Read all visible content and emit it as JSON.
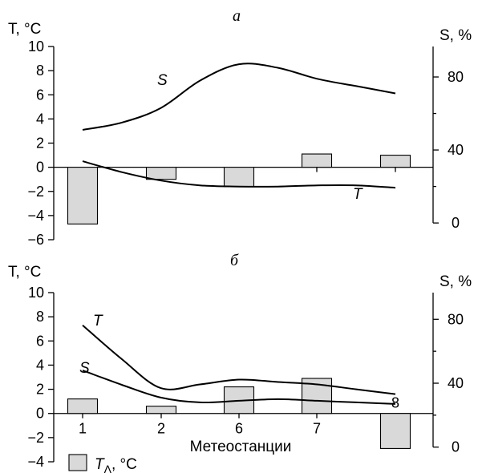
{
  "legend": {
    "symbol": "T",
    "subscript": "Λ",
    "unit": ", °C"
  },
  "chart_data": [
    {
      "type": "bar",
      "title": "а",
      "ylabel_left": "T, °C",
      "ylabel_right": "S, %",
      "xlabel": "",
      "categories": [
        "1",
        "2",
        "6",
        "7",
        "8"
      ],
      "category_labels_shown": false,
      "ylim_left": [
        -6,
        10
      ],
      "yticks_left": [
        10,
        8,
        6,
        4,
        2,
        0,
        -2,
        -4,
        -6
      ],
      "ylim_right": [
        -9.17,
        96.7
      ],
      "yticks_right": [
        80,
        40,
        0
      ],
      "bar_series": {
        "name": "T_Λ, °C",
        "values": [
          -4.7,
          -1.0,
          -1.6,
          1.1,
          1.0
        ]
      },
      "line_series": [
        {
          "name": "S",
          "axis": "right",
          "label": "S",
          "x": [
            1,
            1.5,
            2,
            2.5,
            3,
            3.5,
            4,
            4.5,
            5
          ],
          "values": [
            51,
            55,
            63,
            78,
            87,
            85,
            79,
            75,
            71
          ]
        },
        {
          "name": "T",
          "axis": "left",
          "label": "T",
          "x": [
            1,
            1.5,
            2,
            2.5,
            3,
            3.5,
            4,
            4.5,
            5
          ],
          "values": [
            0.5,
            -0.4,
            -1.1,
            -1.5,
            -1.6,
            -1.6,
            -1.5,
            -1.5,
            -1.7
          ]
        }
      ]
    },
    {
      "type": "bar",
      "title": "б",
      "ylabel_left": "T, °C",
      "ylabel_right": "S, %",
      "xlabel": "Метеостанции",
      "categories": [
        "1",
        "2",
        "6",
        "7",
        "8"
      ],
      "category_labels_shown": true,
      "ylim_left": [
        -4,
        10
      ],
      "yticks_left": [
        10,
        8,
        6,
        4,
        2,
        0,
        -2,
        -4
      ],
      "ylim_right": [
        -9.17,
        96.7
      ],
      "yticks_right": [
        80,
        40,
        0
      ],
      "bar_series": {
        "name": "T_Λ, °C",
        "values": [
          1.2,
          0.6,
          2.2,
          2.9,
          -2.9
        ]
      },
      "line_series": [
        {
          "name": "T",
          "axis": "left",
          "label": "T",
          "x": [
            1,
            1.5,
            2,
            2.5,
            3,
            3.5,
            4,
            4.5,
            5
          ],
          "values": [
            7.3,
            4.5,
            2.1,
            2.4,
            2.8,
            2.6,
            2.4,
            2.0,
            1.6
          ]
        },
        {
          "name": "S",
          "axis": "right",
          "label": "S",
          "x": [
            1,
            1.5,
            2,
            2.5,
            3,
            3.5,
            4,
            4.5,
            5
          ],
          "values": [
            48,
            39,
            31,
            28,
            29,
            30,
            29,
            28,
            27
          ]
        }
      ]
    }
  ]
}
